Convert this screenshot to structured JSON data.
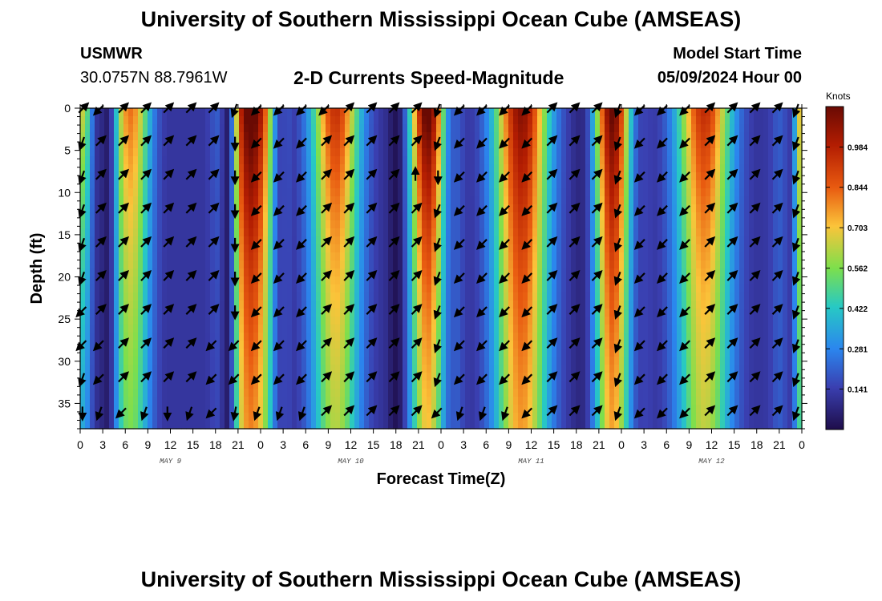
{
  "header": {
    "title": "University of Southern Mississippi Ocean Cube (AMSEAS)",
    "station": "USMWR",
    "coords": "30.0757N  88.7961W",
    "subtitle": "2-D Currents Speed-Magnitude",
    "model_start_label": "Model Start Time",
    "model_start_value": "05/09/2024 Hour 00"
  },
  "footer": {
    "title": "University of Southern Mississippi Ocean Cube (AMSEAS)"
  },
  "chart_data": {
    "type": "heatmap",
    "title": "2-D Currents Speed-Magnitude",
    "xlabel": "Forecast Time(Z)",
    "ylabel": "Depth (ft)",
    "x_hours_range": [
      0,
      96
    ],
    "x_tick_hours": [
      0,
      3,
      6,
      9,
      12,
      15,
      18,
      21,
      24,
      27,
      30,
      33,
      36,
      39,
      42,
      45,
      48,
      51,
      54,
      57,
      60,
      63,
      66,
      69,
      72,
      75,
      78,
      81,
      84,
      87,
      90,
      93,
      96
    ],
    "x_tick_labels": [
      "0",
      "3",
      "6",
      "9",
      "12",
      "15",
      "18",
      "21",
      "0",
      "3",
      "6",
      "9",
      "12",
      "15",
      "18",
      "21",
      "0",
      "3",
      "6",
      "9",
      "12",
      "15",
      "18",
      "21",
      "0",
      "3",
      "6",
      "9",
      "12",
      "15",
      "18",
      "21",
      "0"
    ],
    "day_labels": [
      {
        "text": "MAY 9",
        "hour": 12
      },
      {
        "text": "MAY 10",
        "hour": 36
      },
      {
        "text": "MAY 11",
        "hour": 60
      },
      {
        "text": "MAY 12",
        "hour": 84
      }
    ],
    "y_range": [
      0,
      38
    ],
    "y_ticks": [
      0,
      5,
      10,
      15,
      20,
      25,
      30,
      35
    ],
    "colorbar": {
      "units": "Knots",
      "ticks": [
        "0.984",
        "0.844",
        "0.703",
        "0.562",
        "0.422",
        "0.281",
        "0.141"
      ],
      "tick_values": [
        0.984,
        0.844,
        0.703,
        0.562,
        0.422,
        0.281,
        0.141
      ],
      "range": [
        0.0,
        1.125
      ]
    },
    "surface_speed_peaks": [
      {
        "hour": 0.3,
        "speed": 0.55,
        "width": 1.2,
        "decay_ft": 30,
        "floor": 0.25
      },
      {
        "hour": 6.7,
        "speed": 0.72,
        "width": 2.6,
        "decay_ft": 35,
        "floor": 0.45
      },
      {
        "hour": 22.7,
        "speed": 1.1,
        "width": 3.2,
        "decay_ft": 28,
        "floor": 0.5
      },
      {
        "hour": 34.0,
        "speed": 0.85,
        "width": 3.2,
        "decay_ft": 32,
        "floor": 0.45
      },
      {
        "hour": 46.2,
        "speed": 1.08,
        "width": 2.3,
        "decay_ft": 27,
        "floor": 0.42
      },
      {
        "hour": 58.7,
        "speed": 0.98,
        "width": 3.6,
        "decay_ft": 36,
        "floor": 0.5
      },
      {
        "hour": 70.8,
        "speed": 1.05,
        "width": 2.3,
        "decay_ft": 32,
        "floor": 0.45
      },
      {
        "hour": 83.0,
        "speed": 0.86,
        "width": 3.6,
        "decay_ft": 30,
        "floor": 0.48
      },
      {
        "hour": 95.6,
        "speed": 0.6,
        "width": 0.6,
        "decay_ft": 40,
        "floor": 0.4
      }
    ],
    "slack_minima": [
      {
        "hour": 3.5,
        "speed": 0.05
      },
      {
        "hour": 19.5,
        "speed": 0.05
      },
      {
        "hour": 26.8,
        "speed": 0.15
      },
      {
        "hour": 42.0,
        "speed": 0.02
      },
      {
        "hour": 50.0,
        "speed": 0.2
      },
      {
        "hour": 66.5,
        "speed": 0.08
      },
      {
        "hour": 75.2,
        "speed": 0.15
      },
      {
        "hour": 93.0,
        "speed": 0.2
      }
    ],
    "vector_hours": [
      0.3,
      2.6,
      5.6,
      8.6,
      11.6,
      14.6,
      17.6,
      20.6,
      23.6,
      26.6,
      29.6,
      32.6,
      35.6,
      38.6,
      41.6,
      44.6,
      47.6,
      50.6,
      53.6,
      56.6,
      59.6,
      62.6,
      65.6,
      68.6,
      71.6,
      74.6,
      77.6,
      80.6,
      83.6,
      86.6,
      89.6,
      92.6,
      95.3
    ],
    "vector_depths_ft": [
      0,
      4,
      8,
      12,
      16,
      20,
      24,
      28,
      32,
      36
    ],
    "vector_direction_deg": [
      [
        315,
        135,
        315,
        315,
        315,
        315,
        315,
        110,
        135,
        135,
        135,
        135,
        315,
        315,
        315,
        315,
        110,
        135,
        135,
        135,
        135,
        315,
        315,
        315,
        110,
        135,
        135,
        135,
        315,
        315,
        315,
        315,
        110
      ],
      [
        110,
        315,
        315,
        315,
        315,
        315,
        315,
        90,
        135,
        135,
        135,
        315,
        315,
        315,
        315,
        315,
        110,
        135,
        135,
        135,
        135,
        315,
        315,
        315,
        110,
        135,
        135,
        135,
        315,
        315,
        315,
        315,
        110
      ],
      [
        110,
        315,
        315,
        315,
        315,
        315,
        315,
        90,
        135,
        135,
        135,
        315,
        315,
        315,
        315,
        270,
        90,
        135,
        135,
        135,
        135,
        315,
        315,
        315,
        110,
        135,
        135,
        135,
        315,
        315,
        315,
        315,
        110
      ],
      [
        110,
        315,
        315,
        315,
        315,
        315,
        315,
        90,
        135,
        135,
        135,
        315,
        315,
        315,
        315,
        315,
        110,
        135,
        135,
        135,
        135,
        315,
        315,
        315,
        110,
        135,
        135,
        135,
        315,
        315,
        315,
        315,
        110
      ],
      [
        110,
        315,
        315,
        315,
        315,
        315,
        315,
        90,
        135,
        135,
        135,
        315,
        315,
        315,
        315,
        315,
        110,
        135,
        135,
        135,
        135,
        315,
        315,
        315,
        110,
        135,
        135,
        135,
        315,
        315,
        315,
        315,
        110
      ],
      [
        110,
        315,
        315,
        315,
        315,
        315,
        315,
        90,
        135,
        135,
        135,
        315,
        315,
        315,
        315,
        315,
        110,
        135,
        135,
        135,
        135,
        315,
        315,
        315,
        110,
        135,
        135,
        135,
        315,
        315,
        315,
        315,
        110
      ],
      [
        135,
        315,
        315,
        315,
        315,
        315,
        315,
        90,
        135,
        135,
        135,
        315,
        315,
        315,
        315,
        315,
        110,
        135,
        135,
        135,
        135,
        315,
        315,
        315,
        110,
        135,
        135,
        135,
        315,
        315,
        315,
        315,
        110
      ],
      [
        135,
        135,
        315,
        315,
        315,
        315,
        135,
        135,
        135,
        135,
        135,
        315,
        315,
        315,
        315,
        315,
        110,
        135,
        135,
        135,
        135,
        315,
        315,
        315,
        110,
        135,
        135,
        135,
        315,
        315,
        315,
        315,
        110
      ],
      [
        110,
        135,
        315,
        315,
        315,
        315,
        135,
        135,
        135,
        135,
        135,
        315,
        315,
        315,
        315,
        315,
        110,
        135,
        135,
        135,
        135,
        315,
        315,
        315,
        110,
        135,
        135,
        135,
        315,
        315,
        315,
        315,
        110
      ],
      [
        90,
        110,
        135,
        110,
        90,
        110,
        135,
        100,
        110,
        110,
        110,
        315,
        315,
        315,
        315,
        315,
        135,
        110,
        110,
        110,
        135,
        315,
        315,
        315,
        110,
        135,
        135,
        135,
        315,
        315,
        315,
        315,
        110
      ]
    ]
  }
}
